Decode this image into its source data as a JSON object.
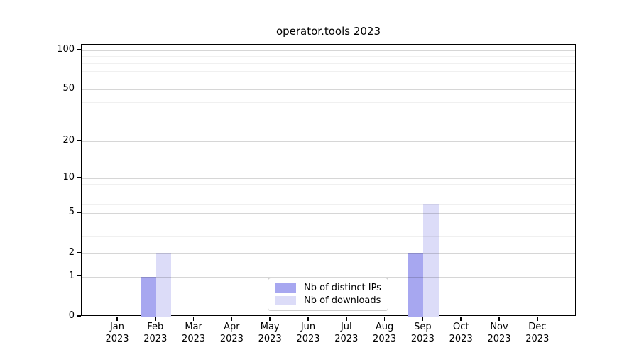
{
  "chart_data": {
    "type": "bar",
    "title": "operator.tools 2023",
    "categories": [
      {
        "month": "Jan",
        "year": "2023"
      },
      {
        "month": "Feb",
        "year": "2023"
      },
      {
        "month": "Mar",
        "year": "2023"
      },
      {
        "month": "Apr",
        "year": "2023"
      },
      {
        "month": "May",
        "year": "2023"
      },
      {
        "month": "Jun",
        "year": "2023"
      },
      {
        "month": "Jul",
        "year": "2023"
      },
      {
        "month": "Aug",
        "year": "2023"
      },
      {
        "month": "Sep",
        "year": "2023"
      },
      {
        "month": "Oct",
        "year": "2023"
      },
      {
        "month": "Nov",
        "year": "2023"
      },
      {
        "month": "Dec",
        "year": "2023"
      }
    ],
    "series": [
      {
        "name": "Nb of distinct IPs",
        "color": "#a7a7f0",
        "values": [
          0,
          1,
          0,
          0,
          0,
          0,
          0,
          0,
          2,
          0,
          0,
          0
        ]
      },
      {
        "name": "Nb of downloads",
        "color": "#dcdcf8",
        "values": [
          0,
          2,
          0,
          0,
          0,
          0,
          0,
          0,
          6,
          0,
          0,
          0
        ]
      }
    ],
    "y_axis": {
      "scale": "log1p",
      "major_ticks": [
        0,
        1,
        2,
        5,
        10,
        20,
        50,
        100
      ],
      "minor_ticks": [
        3,
        4,
        6,
        7,
        8,
        9,
        30,
        40,
        60,
        70,
        80,
        90
      ],
      "ylim": [
        0,
        110.4
      ]
    },
    "legend_position": "lower center",
    "grid": true,
    "colors": {
      "grid_major": "rgba(0,0,0,0.16)",
      "grid_minor": "rgba(0,0,0,0.06)",
      "axis": "#000000",
      "legend_border": "#cccccc",
      "background": "#ffffff"
    }
  }
}
